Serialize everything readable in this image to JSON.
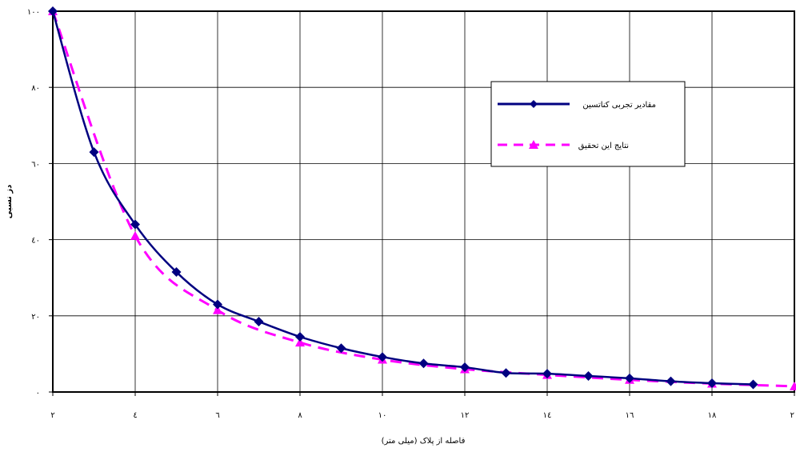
{
  "chart_data": {
    "type": "line",
    "xlabel": "فاصله از پلاک (میلی متر)",
    "ylabel": "دز نسبی",
    "xlim": [
      2,
      20
    ],
    "ylim": [
      0,
      100
    ],
    "x_ticks": [
      "٢",
      "٤",
      "٦",
      "٨",
      "١٠",
      "١٢",
      "١٤",
      "١٦",
      "١٨",
      "٢٠"
    ],
    "y_ticks": [
      "٠",
      "٢٠",
      "٤٠",
      "٦٠",
      "٨٠",
      "١٠٠"
    ],
    "grid": true,
    "legend_position": "right-upper",
    "series": [
      {
        "name": "مقادیر تجربی کناتسین",
        "color": "#000080",
        "style": "solid",
        "marker": "diamond",
        "x": [
          2,
          3,
          4,
          5,
          6,
          7,
          8,
          9,
          10,
          11,
          12,
          13,
          14,
          15,
          16,
          17,
          18,
          19
        ],
        "y": [
          100,
          63,
          44,
          31.5,
          23,
          18.5,
          14.5,
          11.5,
          9.2,
          7.5,
          6.5,
          5,
          4.8,
          4.2,
          3.6,
          2.8,
          2.3,
          2
        ]
      },
      {
        "name": "نتایج این تحقیق",
        "color": "#FF00FF",
        "style": "dashed",
        "marker": "triangle",
        "x": [
          2,
          4,
          6,
          8,
          10,
          12,
          14,
          16,
          18,
          20
        ],
        "y": [
          100,
          41,
          21.5,
          13,
          8.5,
          6,
          4.5,
          3.2,
          2.2,
          1.5
        ]
      }
    ]
  }
}
